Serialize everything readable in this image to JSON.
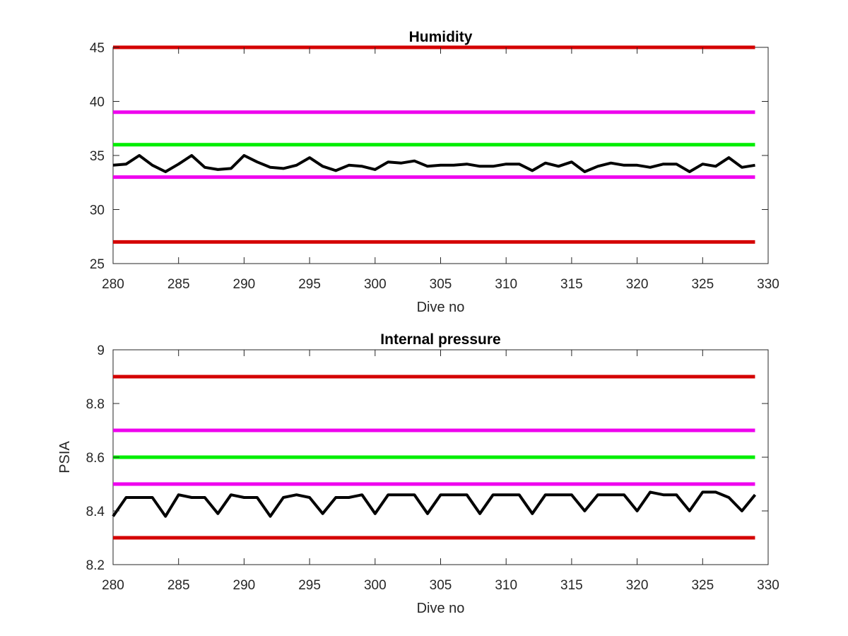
{
  "chart_data": [
    {
      "type": "line",
      "title": "Humidity",
      "xlabel": "Dive no",
      "ylabel": "",
      "xlim": [
        280,
        330
      ],
      "ylim": [
        25,
        45
      ],
      "xticks": [
        280,
        285,
        290,
        295,
        300,
        305,
        310,
        315,
        320,
        325,
        330
      ],
      "yticks": [
        25,
        30,
        35,
        40,
        45
      ],
      "grid": false,
      "thresholds": [
        {
          "value": 45,
          "color": "#d40000"
        },
        {
          "value": 39,
          "color": "#ee00ee"
        },
        {
          "value": 36,
          "color": "#00ee00"
        },
        {
          "value": 33,
          "color": "#ee00ee"
        },
        {
          "value": 27,
          "color": "#d40000"
        }
      ],
      "series": [
        {
          "color": "#000000",
          "x": [
            280,
            281,
            282,
            283,
            284,
            285,
            286,
            287,
            288,
            289,
            290,
            291,
            292,
            293,
            294,
            295,
            296,
            297,
            298,
            299,
            300,
            301,
            302,
            303,
            304,
            305,
            306,
            307,
            308,
            309,
            310,
            311,
            312,
            313,
            314,
            315,
            316,
            317,
            318,
            319,
            320,
            321,
            322,
            323,
            324,
            325,
            326,
            327,
            328,
            329
          ],
          "values": [
            34.1,
            34.2,
            35.0,
            34.1,
            33.5,
            34.2,
            35.0,
            33.9,
            33.7,
            33.8,
            35.0,
            34.4,
            33.9,
            33.8,
            34.1,
            34.8,
            34.0,
            33.6,
            34.1,
            34.0,
            33.7,
            34.4,
            34.3,
            34.5,
            34.0,
            34.1,
            34.1,
            34.2,
            34.0,
            34.0,
            34.2,
            34.2,
            33.6,
            34.3,
            34.0,
            34.4,
            33.5,
            34.0,
            34.3,
            34.1,
            34.1,
            33.9,
            34.2,
            34.2,
            33.5,
            34.2,
            34.0,
            34.8,
            33.9,
            34.1
          ]
        }
      ]
    },
    {
      "type": "line",
      "title": "Internal pressure",
      "xlabel": "Dive no",
      "ylabel": "PSIA",
      "xlim": [
        280,
        330
      ],
      "ylim": [
        8.2,
        9.0
      ],
      "xticks": [
        280,
        285,
        290,
        295,
        300,
        305,
        310,
        315,
        320,
        325,
        330
      ],
      "yticks": [
        8.2,
        8.4,
        8.6,
        8.8,
        9
      ],
      "grid": false,
      "thresholds": [
        {
          "value": 8.9,
          "color": "#d40000"
        },
        {
          "value": 8.7,
          "color": "#ee00ee"
        },
        {
          "value": 8.6,
          "color": "#00ee00"
        },
        {
          "value": 8.5,
          "color": "#ee00ee"
        },
        {
          "value": 8.3,
          "color": "#d40000"
        }
      ],
      "series": [
        {
          "color": "#000000",
          "x": [
            280,
            281,
            282,
            283,
            284,
            285,
            286,
            287,
            288,
            289,
            290,
            291,
            292,
            293,
            294,
            295,
            296,
            297,
            298,
            299,
            300,
            301,
            302,
            303,
            304,
            305,
            306,
            307,
            308,
            309,
            310,
            311,
            312,
            313,
            314,
            315,
            316,
            317,
            318,
            319,
            320,
            321,
            322,
            323,
            324,
            325,
            326,
            327,
            328,
            329
          ],
          "values": [
            8.38,
            8.45,
            8.45,
            8.45,
            8.38,
            8.46,
            8.45,
            8.45,
            8.39,
            8.46,
            8.45,
            8.45,
            8.38,
            8.45,
            8.46,
            8.45,
            8.39,
            8.45,
            8.45,
            8.46,
            8.39,
            8.46,
            8.46,
            8.46,
            8.39,
            8.46,
            8.46,
            8.46,
            8.39,
            8.46,
            8.46,
            8.46,
            8.39,
            8.46,
            8.46,
            8.46,
            8.4,
            8.46,
            8.46,
            8.46,
            8.4,
            8.47,
            8.46,
            8.46,
            8.4,
            8.47,
            8.47,
            8.45,
            8.4,
            8.46
          ]
        }
      ]
    }
  ]
}
